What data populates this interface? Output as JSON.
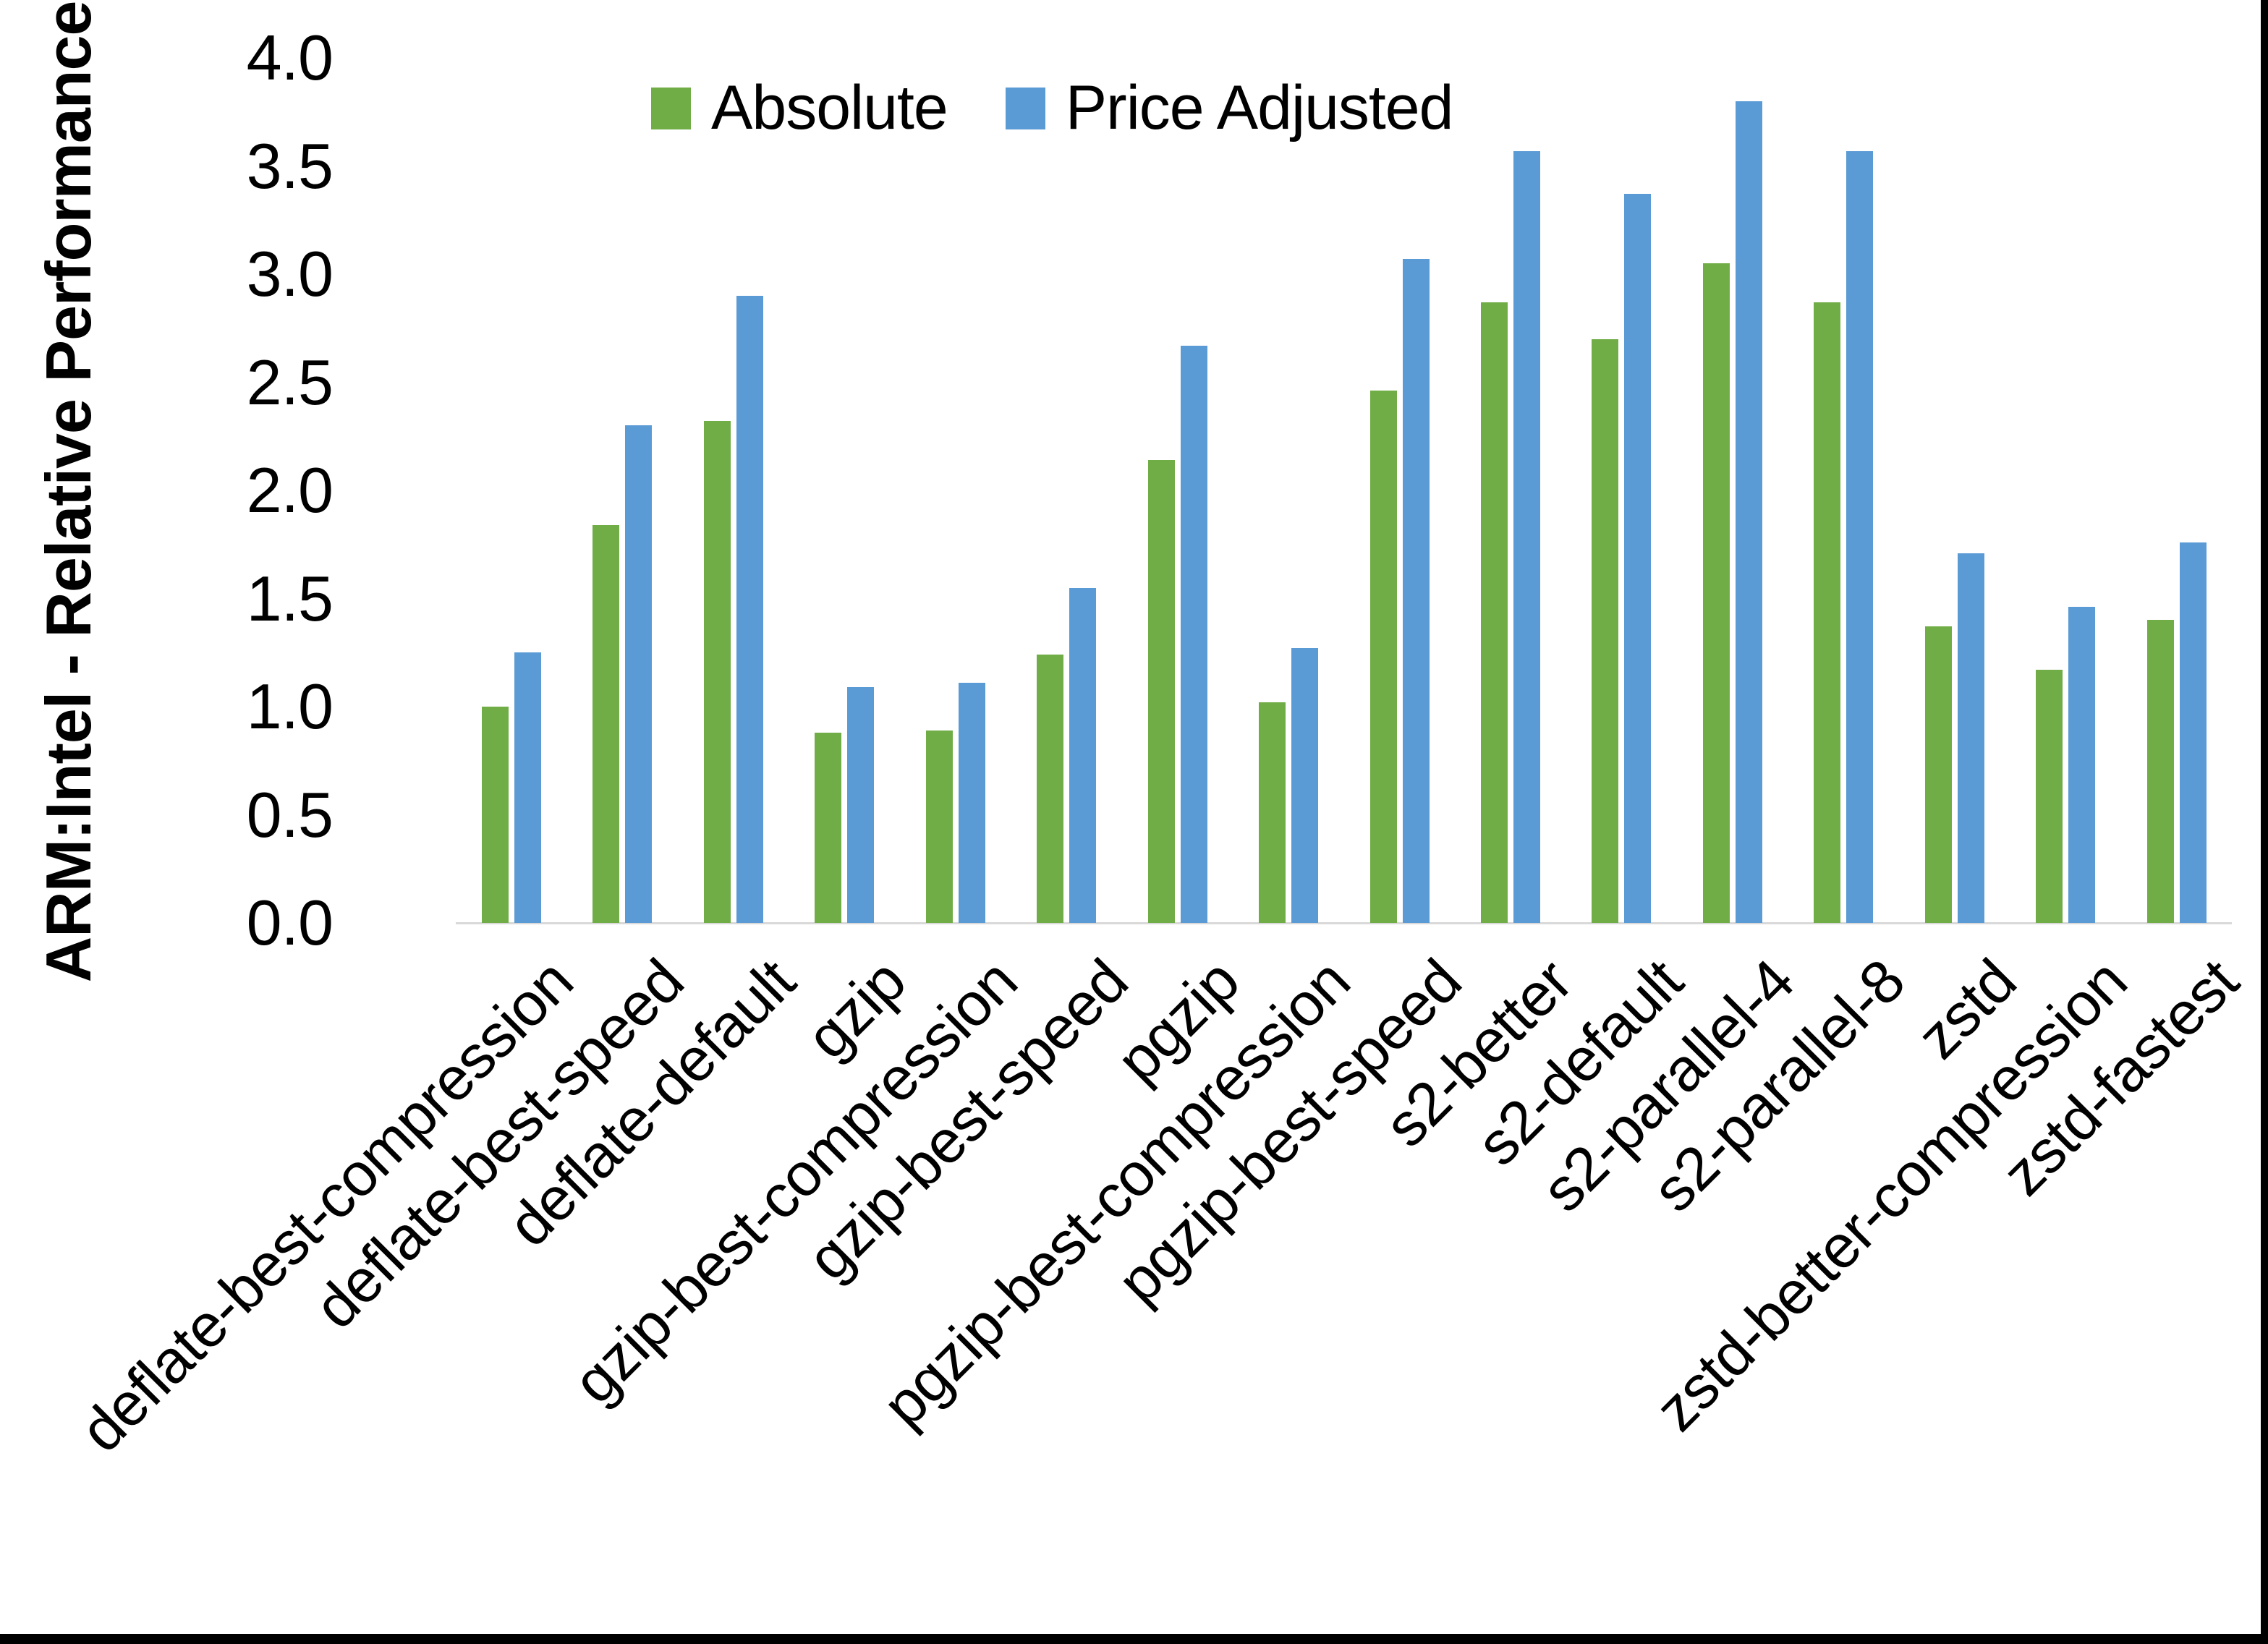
{
  "chart_data": {
    "type": "bar",
    "title": "",
    "ylabel": "ARM:Intel - Relative Performance",
    "xlabel": "",
    "ylim": [
      0.0,
      4.0
    ],
    "ytick_step": 0.5,
    "ytick_labels": [
      "0.0",
      "0.5",
      "1.0",
      "1.5",
      "2.0",
      "2.5",
      "3.0",
      "3.5",
      "4.0"
    ],
    "grid": false,
    "legend_position": "top-center",
    "categories": [
      "deflate-best-compression",
      "deflate-best-speed",
      "deflate-default",
      "gzip",
      "gzip-best-compression",
      "gzip-best-speed",
      "pgzip",
      "pgzip-best-compression",
      "pgzip-best-speed",
      "s2-better",
      "s2-default",
      "s2-parallel-4",
      "s2-parallel-8",
      "zstd",
      "zstd-better-compression",
      "zstd-fastest"
    ],
    "series": [
      {
        "name": "Absolute",
        "color": "#70AD47",
        "values": [
          1.0,
          1.84,
          2.32,
          0.88,
          0.89,
          1.24,
          2.14,
          1.02,
          2.46,
          2.87,
          2.7,
          3.05,
          2.87,
          1.37,
          1.17,
          1.4
        ]
      },
      {
        "name": "Price Adjusted",
        "color": "#5B9BD5",
        "values": [
          1.25,
          2.3,
          2.9,
          1.09,
          1.11,
          1.55,
          2.67,
          1.27,
          3.07,
          3.57,
          3.37,
          3.8,
          3.57,
          1.71,
          1.46,
          1.76
        ]
      }
    ]
  },
  "colors": {
    "background": "#FFFFFF",
    "axis_line": "#D9D9D9",
    "text": "#000000",
    "frame_border": "#000000",
    "series_absolute": "#70AD47",
    "series_price_adjusted": "#5B9BD5"
  }
}
